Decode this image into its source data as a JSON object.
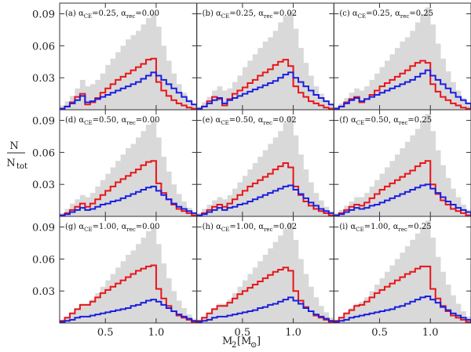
{
  "figure": {
    "ylabel_num": "N",
    "ylabel_den": "N",
    "ylabel_den_sub": "tot",
    "xlabel": "M",
    "xlabel_sub": "2",
    "xlabel_unit_open": "[M",
    "xlabel_unit_sub": "⊙",
    "xlabel_unit_close": "]"
  },
  "chart_data": {
    "type": "step-histogram-grid",
    "rows": 3,
    "cols": 3,
    "xlim": [
      0.05,
      1.4
    ],
    "ylim": [
      0,
      0.1
    ],
    "x_ticks": [
      0.5,
      1.0
    ],
    "x_tick_labels": [
      "0.5",
      "1.0"
    ],
    "y_ticks": [
      0.03,
      0.06,
      0.09
    ],
    "y_tick_labels": [
      "0.03",
      "0.06",
      "0.09"
    ],
    "bin_edges": [
      0.05,
      0.1,
      0.15,
      0.2,
      0.25,
      0.3,
      0.35,
      0.4,
      0.45,
      0.5,
      0.55,
      0.6,
      0.65,
      0.7,
      0.75,
      0.8,
      0.85,
      0.9,
      0.95,
      1.0,
      1.05,
      1.1,
      1.15,
      1.2,
      1.25,
      1.3,
      1.35,
      1.4
    ],
    "series_styles": [
      {
        "name": "total",
        "color": "#d9d9d9",
        "style": "filled"
      },
      {
        "name": "red",
        "color": "#e8141b",
        "style": "step"
      },
      {
        "name": "blue",
        "color": "#1a1ee0",
        "style": "step"
      }
    ],
    "panels": [
      {
        "tag": "(a)",
        "alpha_ce": "0.25",
        "alpha_rec": "0.00",
        "grey": [
          0.004,
          0.008,
          0.013,
          0.02,
          0.028,
          0.022,
          0.024,
          0.028,
          0.034,
          0.042,
          0.048,
          0.054,
          0.06,
          0.066,
          0.07,
          0.074,
          0.08,
          0.086,
          0.09,
          0.078,
          0.06,
          0.046,
          0.034,
          0.024,
          0.016,
          0.01,
          0.006
        ],
        "red": [
          0.001,
          0.003,
          0.007,
          0.012,
          0.015,
          0.005,
          0.007,
          0.011,
          0.016,
          0.02,
          0.024,
          0.028,
          0.031,
          0.034,
          0.037,
          0.04,
          0.043,
          0.047,
          0.048,
          0.026,
          0.018,
          0.013,
          0.009,
          0.006,
          0.004,
          0.002,
          0.001
        ],
        "blue": [
          0.001,
          0.003,
          0.006,
          0.009,
          0.013,
          0.007,
          0.008,
          0.01,
          0.012,
          0.014,
          0.016,
          0.018,
          0.02,
          0.022,
          0.024,
          0.026,
          0.029,
          0.032,
          0.035,
          0.032,
          0.028,
          0.024,
          0.02,
          0.016,
          0.012,
          0.008,
          0.005
        ]
      },
      {
        "tag": "(b)",
        "alpha_ce": "0.25",
        "alpha_rec": "0.02",
        "grey": [
          0.003,
          0.007,
          0.012,
          0.018,
          0.022,
          0.018,
          0.02,
          0.026,
          0.032,
          0.04,
          0.046,
          0.052,
          0.058,
          0.064,
          0.068,
          0.074,
          0.082,
          0.088,
          0.092,
          0.076,
          0.058,
          0.044,
          0.032,
          0.022,
          0.015,
          0.009,
          0.005
        ],
        "red": [
          0.001,
          0.003,
          0.008,
          0.012,
          0.01,
          0.004,
          0.01,
          0.015,
          0.018,
          0.021,
          0.025,
          0.028,
          0.032,
          0.035,
          0.038,
          0.042,
          0.045,
          0.047,
          0.041,
          0.022,
          0.016,
          0.012,
          0.008,
          0.006,
          0.004,
          0.002,
          0.001
        ],
        "blue": [
          0.001,
          0.003,
          0.006,
          0.009,
          0.011,
          0.006,
          0.009,
          0.011,
          0.013,
          0.015,
          0.017,
          0.019,
          0.021,
          0.023,
          0.025,
          0.027,
          0.03,
          0.033,
          0.035,
          0.03,
          0.026,
          0.022,
          0.018,
          0.014,
          0.011,
          0.008,
          0.005
        ]
      },
      {
        "tag": "(c)",
        "alpha_ce": "0.25",
        "alpha_rec": "0.25",
        "grey": [
          0.003,
          0.006,
          0.011,
          0.016,
          0.02,
          0.018,
          0.022,
          0.028,
          0.034,
          0.04,
          0.046,
          0.052,
          0.058,
          0.064,
          0.068,
          0.074,
          0.082,
          0.09,
          0.096,
          0.08,
          0.062,
          0.048,
          0.036,
          0.026,
          0.018,
          0.011,
          0.006
        ],
        "red": [
          0.001,
          0.003,
          0.007,
          0.01,
          0.012,
          0.007,
          0.01,
          0.014,
          0.018,
          0.022,
          0.025,
          0.028,
          0.031,
          0.034,
          0.037,
          0.041,
          0.044,
          0.046,
          0.044,
          0.024,
          0.017,
          0.012,
          0.009,
          0.006,
          0.004,
          0.002,
          0.001
        ],
        "blue": [
          0.001,
          0.003,
          0.006,
          0.009,
          0.011,
          0.008,
          0.01,
          0.012,
          0.014,
          0.016,
          0.018,
          0.02,
          0.022,
          0.024,
          0.026,
          0.028,
          0.031,
          0.034,
          0.037,
          0.032,
          0.028,
          0.024,
          0.02,
          0.016,
          0.012,
          0.009,
          0.006
        ]
      },
      {
        "tag": "(d)",
        "alpha_ce": "0.50",
        "alpha_rec": "0.00",
        "grey": [
          0.003,
          0.007,
          0.012,
          0.016,
          0.02,
          0.018,
          0.022,
          0.028,
          0.034,
          0.04,
          0.046,
          0.052,
          0.058,
          0.064,
          0.068,
          0.074,
          0.08,
          0.086,
          0.09,
          0.074,
          0.056,
          0.042,
          0.03,
          0.021,
          0.014,
          0.008,
          0.004
        ],
        "red": [
          0.001,
          0.003,
          0.006,
          0.009,
          0.012,
          0.009,
          0.012,
          0.016,
          0.02,
          0.024,
          0.028,
          0.032,
          0.035,
          0.038,
          0.041,
          0.044,
          0.048,
          0.051,
          0.052,
          0.031,
          0.022,
          0.016,
          0.011,
          0.007,
          0.005,
          0.003,
          0.001
        ],
        "blue": [
          0.001,
          0.002,
          0.004,
          0.006,
          0.008,
          0.006,
          0.007,
          0.009,
          0.011,
          0.012,
          0.014,
          0.015,
          0.017,
          0.019,
          0.021,
          0.023,
          0.025,
          0.027,
          0.028,
          0.024,
          0.02,
          0.016,
          0.012,
          0.009,
          0.007,
          0.005,
          0.003
        ]
      },
      {
        "tag": "(e)",
        "alpha_ce": "0.50",
        "alpha_rec": "0.02",
        "grey": [
          0.003,
          0.007,
          0.011,
          0.015,
          0.018,
          0.016,
          0.02,
          0.026,
          0.032,
          0.038,
          0.044,
          0.05,
          0.056,
          0.062,
          0.068,
          0.074,
          0.08,
          0.088,
          0.094,
          0.076,
          0.058,
          0.044,
          0.032,
          0.022,
          0.015,
          0.009,
          0.005
        ],
        "red": [
          0.001,
          0.003,
          0.006,
          0.009,
          0.011,
          0.009,
          0.012,
          0.016,
          0.02,
          0.024,
          0.028,
          0.031,
          0.034,
          0.037,
          0.04,
          0.044,
          0.047,
          0.05,
          0.046,
          0.028,
          0.02,
          0.014,
          0.01,
          0.007,
          0.005,
          0.003,
          0.001
        ],
        "blue": [
          0.001,
          0.002,
          0.004,
          0.006,
          0.008,
          0.006,
          0.008,
          0.009,
          0.011,
          0.012,
          0.014,
          0.016,
          0.018,
          0.02,
          0.022,
          0.024,
          0.026,
          0.028,
          0.029,
          0.025,
          0.021,
          0.017,
          0.013,
          0.01,
          0.007,
          0.005,
          0.003
        ]
      },
      {
        "tag": "(f)",
        "alpha_ce": "0.50",
        "alpha_rec": "0.25",
        "grey": [
          0.003,
          0.006,
          0.01,
          0.014,
          0.018,
          0.018,
          0.022,
          0.028,
          0.034,
          0.04,
          0.046,
          0.052,
          0.058,
          0.064,
          0.07,
          0.076,
          0.082,
          0.09,
          0.096,
          0.08,
          0.062,
          0.048,
          0.036,
          0.026,
          0.018,
          0.011,
          0.006
        ],
        "red": [
          0.001,
          0.003,
          0.006,
          0.009,
          0.011,
          0.01,
          0.013,
          0.017,
          0.021,
          0.025,
          0.028,
          0.031,
          0.034,
          0.037,
          0.04,
          0.043,
          0.047,
          0.05,
          0.052,
          0.03,
          0.021,
          0.015,
          0.011,
          0.007,
          0.005,
          0.003,
          0.001
        ],
        "blue": [
          0.001,
          0.002,
          0.004,
          0.006,
          0.008,
          0.007,
          0.008,
          0.01,
          0.011,
          0.013,
          0.015,
          0.017,
          0.019,
          0.021,
          0.023,
          0.025,
          0.027,
          0.029,
          0.03,
          0.026,
          0.022,
          0.018,
          0.014,
          0.011,
          0.008,
          0.006,
          0.004
        ]
      },
      {
        "tag": "(g)",
        "alpha_ce": "1.00",
        "alpha_rec": "0.00",
        "grey": [
          0.003,
          0.006,
          0.01,
          0.014,
          0.018,
          0.018,
          0.022,
          0.028,
          0.034,
          0.04,
          0.046,
          0.052,
          0.058,
          0.064,
          0.068,
          0.074,
          0.08,
          0.086,
          0.09,
          0.074,
          0.056,
          0.042,
          0.03,
          0.021,
          0.014,
          0.008,
          0.004
        ],
        "red": [
          0.002,
          0.005,
          0.009,
          0.013,
          0.017,
          0.017,
          0.02,
          0.024,
          0.028,
          0.031,
          0.034,
          0.037,
          0.04,
          0.043,
          0.046,
          0.049,
          0.051,
          0.053,
          0.054,
          0.032,
          0.023,
          0.016,
          0.011,
          0.007,
          0.005,
          0.003,
          0.001
        ],
        "blue": [
          0.001,
          0.002,
          0.003,
          0.005,
          0.006,
          0.006,
          0.007,
          0.008,
          0.009,
          0.01,
          0.011,
          0.012,
          0.013,
          0.014,
          0.016,
          0.017,
          0.019,
          0.021,
          0.022,
          0.02,
          0.017,
          0.014,
          0.011,
          0.008,
          0.006,
          0.004,
          0.002
        ]
      },
      {
        "tag": "(h)",
        "alpha_ce": "1.00",
        "alpha_rec": "0.02",
        "grey": [
          0.003,
          0.006,
          0.01,
          0.014,
          0.018,
          0.018,
          0.022,
          0.028,
          0.034,
          0.04,
          0.046,
          0.052,
          0.058,
          0.064,
          0.07,
          0.076,
          0.082,
          0.088,
          0.094,
          0.078,
          0.06,
          0.046,
          0.034,
          0.024,
          0.016,
          0.01,
          0.005
        ],
        "red": [
          0.002,
          0.005,
          0.009,
          0.013,
          0.016,
          0.016,
          0.019,
          0.023,
          0.027,
          0.03,
          0.033,
          0.036,
          0.039,
          0.042,
          0.045,
          0.048,
          0.05,
          0.052,
          0.049,
          0.03,
          0.021,
          0.015,
          0.011,
          0.007,
          0.005,
          0.003,
          0.001
        ],
        "blue": [
          0.001,
          0.002,
          0.003,
          0.005,
          0.006,
          0.006,
          0.007,
          0.008,
          0.009,
          0.01,
          0.011,
          0.012,
          0.014,
          0.015,
          0.017,
          0.018,
          0.02,
          0.022,
          0.024,
          0.021,
          0.018,
          0.014,
          0.011,
          0.008,
          0.006,
          0.004,
          0.002
        ]
      },
      {
        "tag": "(i)",
        "alpha_ce": "1.00",
        "alpha_rec": "0.25",
        "grey": [
          0.003,
          0.006,
          0.01,
          0.014,
          0.018,
          0.02,
          0.024,
          0.03,
          0.036,
          0.042,
          0.048,
          0.054,
          0.06,
          0.066,
          0.072,
          0.078,
          0.084,
          0.09,
          0.096,
          0.08,
          0.062,
          0.048,
          0.036,
          0.026,
          0.018,
          0.011,
          0.006
        ],
        "red": [
          0.002,
          0.005,
          0.009,
          0.012,
          0.016,
          0.017,
          0.02,
          0.024,
          0.028,
          0.031,
          0.034,
          0.037,
          0.04,
          0.043,
          0.046,
          0.048,
          0.051,
          0.053,
          0.053,
          0.032,
          0.023,
          0.016,
          0.011,
          0.007,
          0.005,
          0.003,
          0.001
        ],
        "blue": [
          0.001,
          0.002,
          0.003,
          0.005,
          0.006,
          0.007,
          0.008,
          0.009,
          0.01,
          0.011,
          0.012,
          0.013,
          0.015,
          0.016,
          0.018,
          0.02,
          0.022,
          0.024,
          0.025,
          0.022,
          0.019,
          0.015,
          0.012,
          0.009,
          0.007,
          0.005,
          0.003
        ]
      }
    ]
  }
}
